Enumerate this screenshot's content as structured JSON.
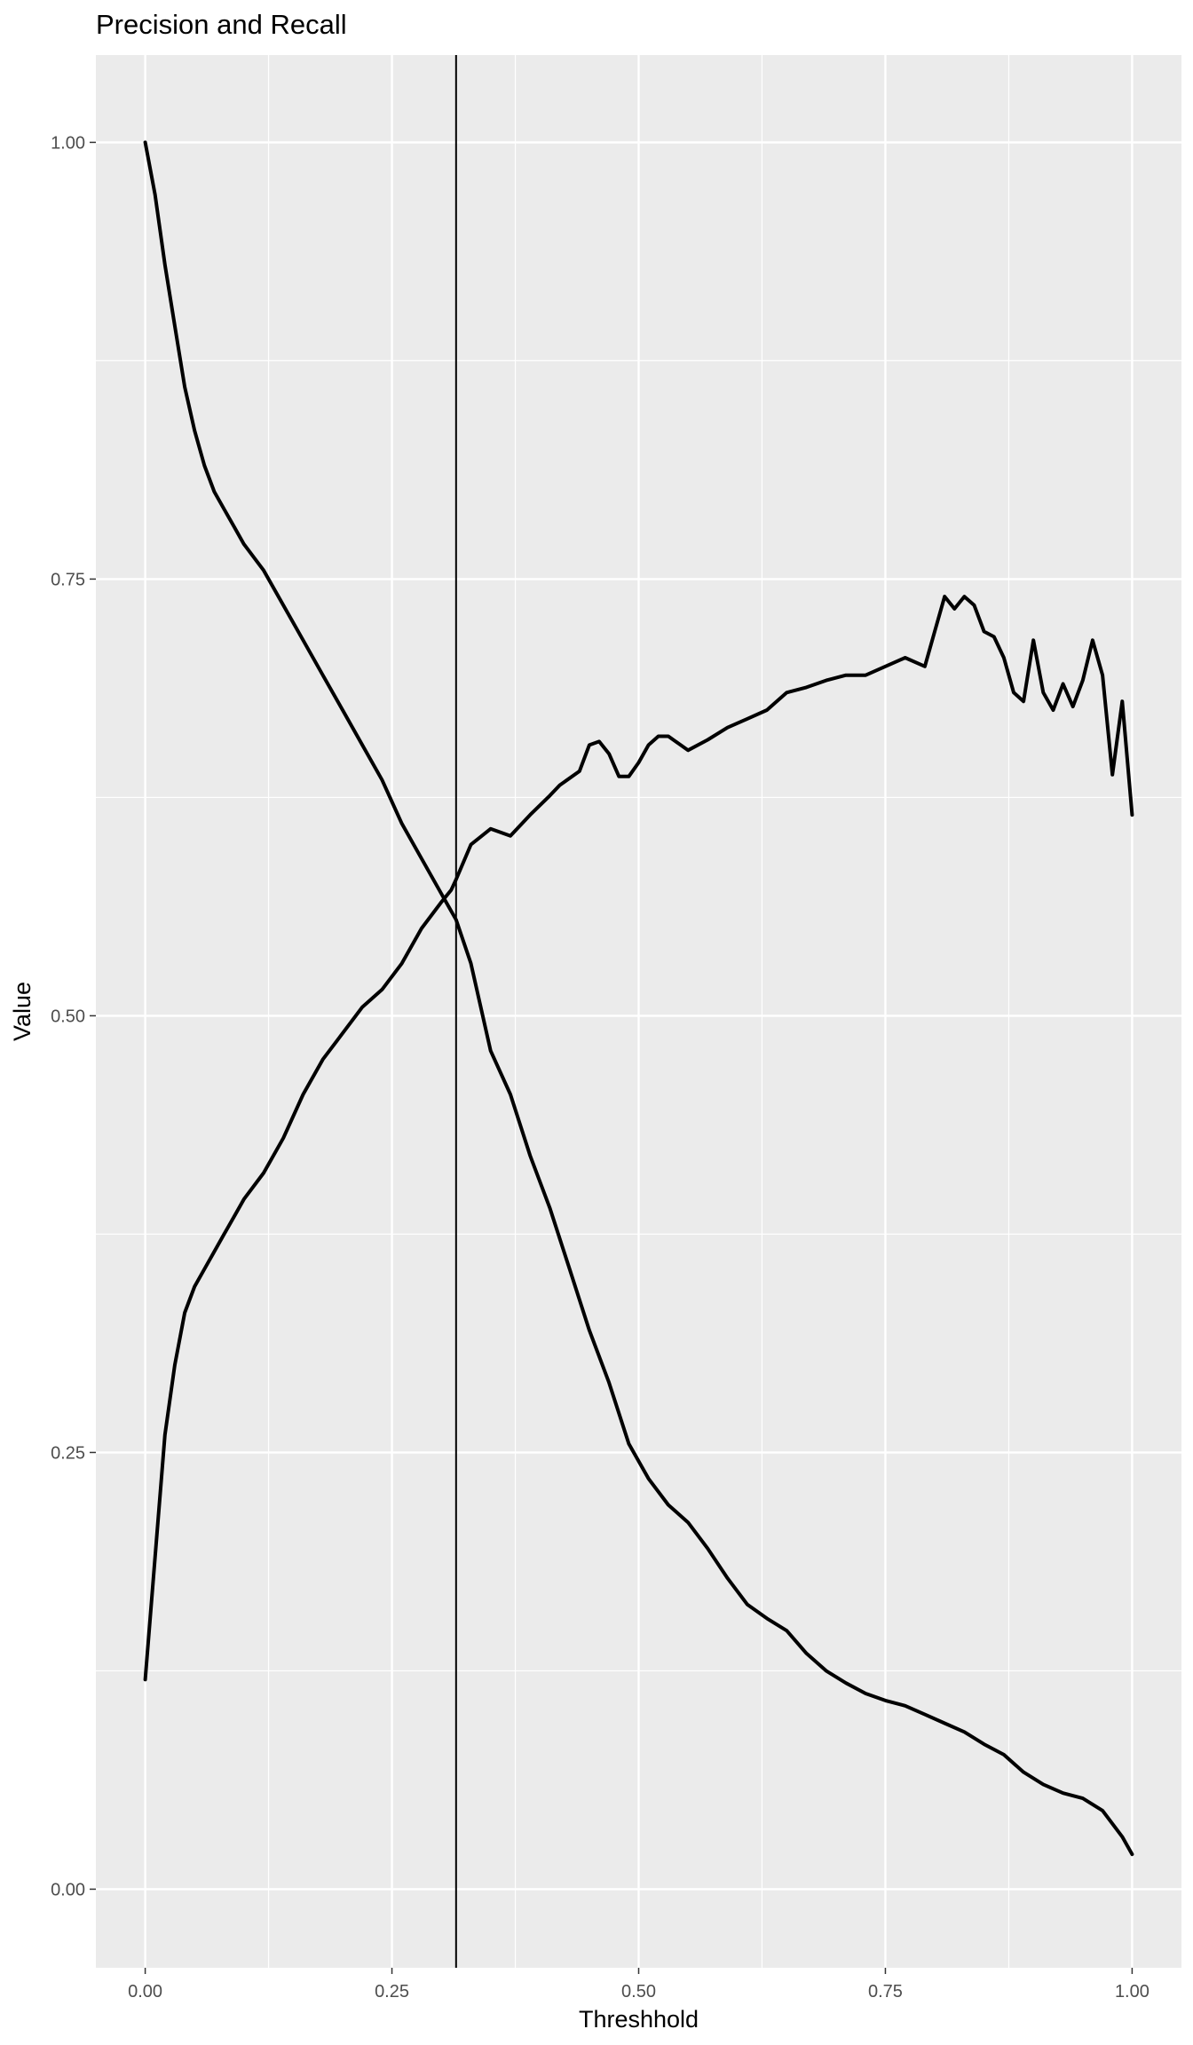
{
  "chart_data": {
    "type": "line",
    "title": "Precision and Recall",
    "xlabel": "Threshhold",
    "ylabel": "Value",
    "xlim": [
      -0.05,
      1.05
    ],
    "ylim": [
      -0.045,
      1.05
    ],
    "x_ticks": [
      0.0,
      0.25,
      0.5,
      0.75,
      1.0
    ],
    "x_tick_labels": [
      "0.00",
      "0.25",
      "0.50",
      "0.75",
      "1.00"
    ],
    "y_ticks": [
      0.0,
      0.25,
      0.5,
      0.75,
      1.0
    ],
    "y_tick_labels": [
      "0.00",
      "0.25",
      "0.50",
      "0.75",
      "1.00"
    ],
    "grid": true,
    "legend": "none",
    "background_color": "#ebebeb",
    "grid_color": "#ffffff",
    "line_color": "#000000",
    "vline": {
      "x": 0.315
    },
    "series": [
      {
        "x": [
          0.0,
          0.01,
          0.02,
          0.03,
          0.04,
          0.05,
          0.06,
          0.07,
          0.08,
          0.09,
          0.1,
          0.12,
          0.14,
          0.16,
          0.18,
          0.2,
          0.22,
          0.24,
          0.26,
          0.28,
          0.3,
          0.31,
          0.315,
          0.33,
          0.35,
          0.37,
          0.39,
          0.41,
          0.42,
          0.44,
          0.45,
          0.46,
          0.47,
          0.48,
          0.49,
          0.5,
          0.51,
          0.52,
          0.53,
          0.55,
          0.57,
          0.59,
          0.61,
          0.63,
          0.65,
          0.67,
          0.69,
          0.71,
          0.73,
          0.75,
          0.77,
          0.79,
          0.8,
          0.81,
          0.82,
          0.83,
          0.84,
          0.85,
          0.86,
          0.87,
          0.88,
          0.89,
          0.9,
          0.91,
          0.92,
          0.93,
          0.94,
          0.95,
          0.96,
          0.97,
          0.98,
          0.99,
          1.0
        ],
        "values": [
          0.12,
          0.19,
          0.26,
          0.3,
          0.33,
          0.345,
          0.355,
          0.365,
          0.375,
          0.385,
          0.395,
          0.41,
          0.43,
          0.455,
          0.475,
          0.49,
          0.505,
          0.515,
          0.53,
          0.55,
          0.565,
          0.572,
          0.578,
          0.598,
          0.607,
          0.603,
          0.615,
          0.626,
          0.632,
          0.64,
          0.655,
          0.657,
          0.65,
          0.637,
          0.637,
          0.645,
          0.655,
          0.66,
          0.66,
          0.652,
          0.658,
          0.665,
          0.67,
          0.675,
          0.685,
          0.688,
          0.692,
          0.695,
          0.695,
          0.7,
          0.705,
          0.7,
          0.72,
          0.74,
          0.733,
          0.74,
          0.735,
          0.72,
          0.717,
          0.705,
          0.685,
          0.68,
          0.715,
          0.685,
          0.675,
          0.69,
          0.677,
          0.692,
          0.715,
          0.695,
          0.638,
          0.68,
          0.615
        ]
      },
      {
        "x": [
          0.0,
          0.01,
          0.02,
          0.03,
          0.04,
          0.05,
          0.06,
          0.07,
          0.08,
          0.09,
          0.1,
          0.12,
          0.14,
          0.16,
          0.18,
          0.2,
          0.22,
          0.24,
          0.26,
          0.28,
          0.3,
          0.315,
          0.33,
          0.35,
          0.37,
          0.39,
          0.41,
          0.43,
          0.45,
          0.47,
          0.49,
          0.51,
          0.53,
          0.55,
          0.57,
          0.59,
          0.61,
          0.63,
          0.65,
          0.67,
          0.69,
          0.71,
          0.73,
          0.75,
          0.77,
          0.79,
          0.81,
          0.83,
          0.85,
          0.87,
          0.89,
          0.91,
          0.93,
          0.95,
          0.97,
          0.99,
          1.0
        ],
        "values": [
          1.0,
          0.97,
          0.93,
          0.895,
          0.86,
          0.835,
          0.815,
          0.8,
          0.79,
          0.78,
          0.77,
          0.755,
          0.735,
          0.715,
          0.695,
          0.675,
          0.655,
          0.635,
          0.61,
          0.59,
          0.57,
          0.555,
          0.53,
          0.48,
          0.455,
          0.42,
          0.39,
          0.355,
          0.32,
          0.29,
          0.255,
          0.235,
          0.22,
          0.21,
          0.195,
          0.178,
          0.163,
          0.155,
          0.148,
          0.135,
          0.125,
          0.118,
          0.112,
          0.108,
          0.105,
          0.1,
          0.095,
          0.09,
          0.083,
          0.077,
          0.067,
          0.06,
          0.055,
          0.052,
          0.045,
          0.03,
          0.02
        ]
      }
    ]
  }
}
